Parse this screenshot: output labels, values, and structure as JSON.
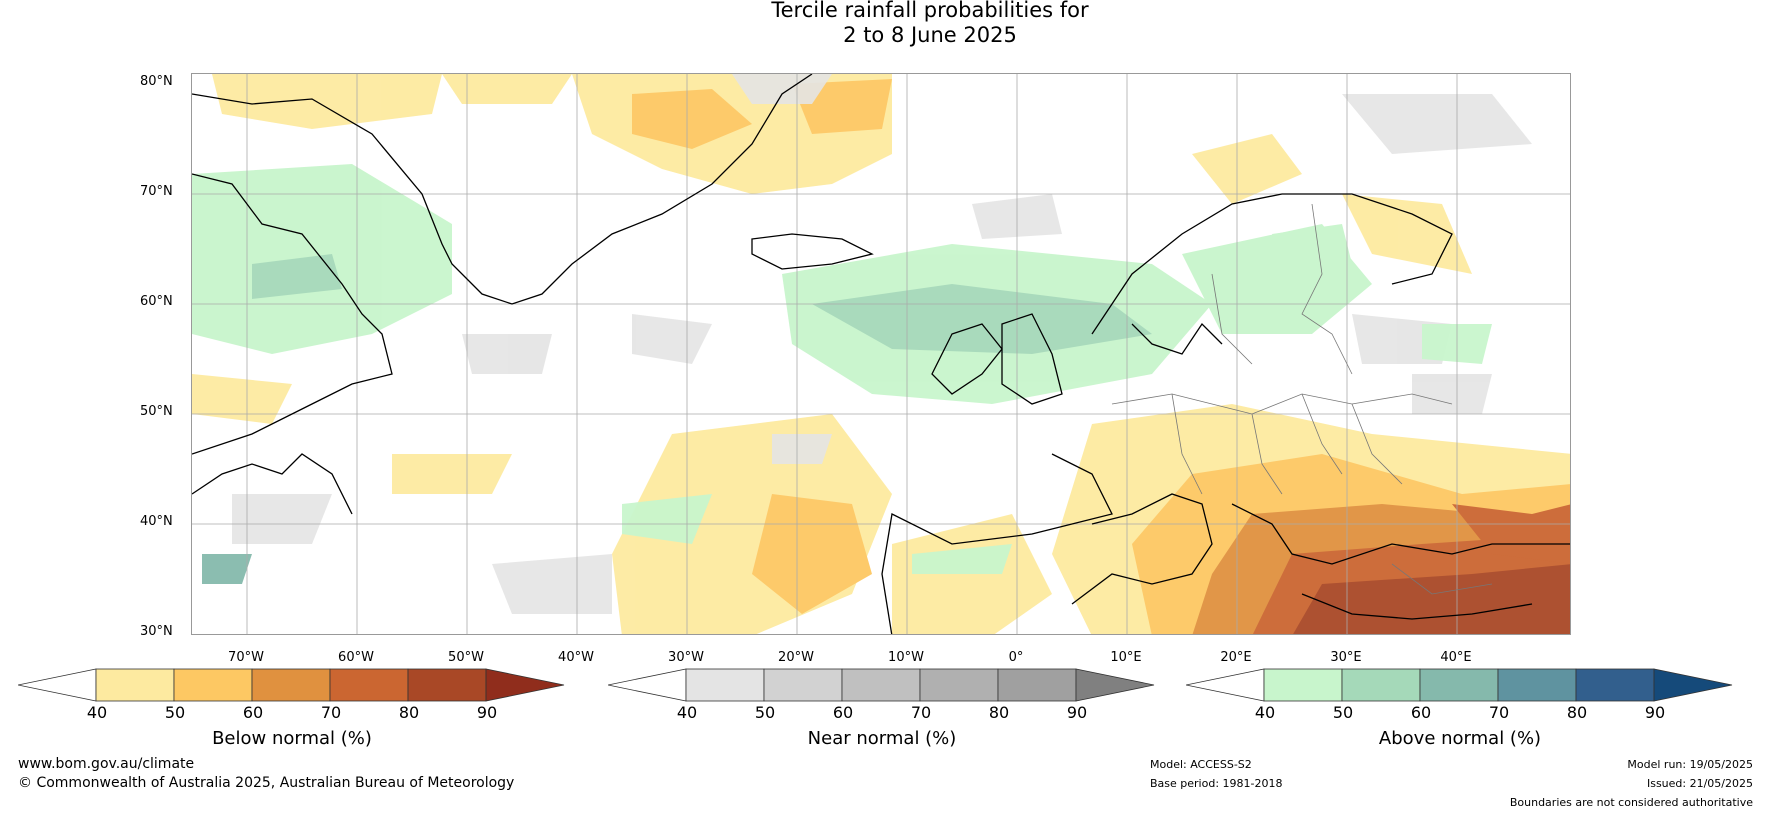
{
  "title": {
    "line1": "Tercile rainfall probabilities for",
    "line2": "2 to 8 June 2025"
  },
  "map": {
    "lat_labels": [
      "80°N",
      "70°N",
      "60°N",
      "50°N",
      "40°N",
      "30°N"
    ],
    "lon_labels": [
      "70°W",
      "60°W",
      "50°W",
      "40°W",
      "30°W",
      "20°W",
      "10°W",
      "0°",
      "10°E",
      "20°E",
      "30°E",
      "40°E"
    ]
  },
  "colorbars": [
    {
      "label": "Below normal (%)",
      "ticks": [
        "40",
        "50",
        "60",
        "70",
        "80",
        "90"
      ],
      "colors": [
        "#ffffff",
        "#fdeaa0",
        "#fdc863",
        "#e0913f",
        "#cb6631",
        "#a94826",
        "#902d1c"
      ]
    },
    {
      "label": "Near normal (%)",
      "ticks": [
        "40",
        "50",
        "60",
        "70",
        "80",
        "90"
      ],
      "colors": [
        "#ffffff",
        "#e4e4e4",
        "#d2d2d2",
        "#c0c0c0",
        "#b0b0b0",
        "#a0a0a0",
        "#808080"
      ]
    },
    {
      "label": "Above normal (%)",
      "ticks": [
        "40",
        "50",
        "60",
        "70",
        "80",
        "90"
      ],
      "colors": [
        "#ffffff",
        "#c8f5cc",
        "#a5d9b9",
        "#85b9ac",
        "#5f93a0",
        "#325f8d",
        "#154a7a"
      ]
    }
  ],
  "footer": {
    "website": "www.bom.gov.au/climate",
    "copyright": "© Commonwealth of Australia 2025, Australian Bureau of Meteorology",
    "model": "Model: ACCESS-S2",
    "base_period": "Base period: 1981-2018",
    "model_run": "Model run: 19/05/2025",
    "issued": "Issued: 21/05/2025",
    "disclaimer": "Boundaries are not considered authoritative"
  }
}
